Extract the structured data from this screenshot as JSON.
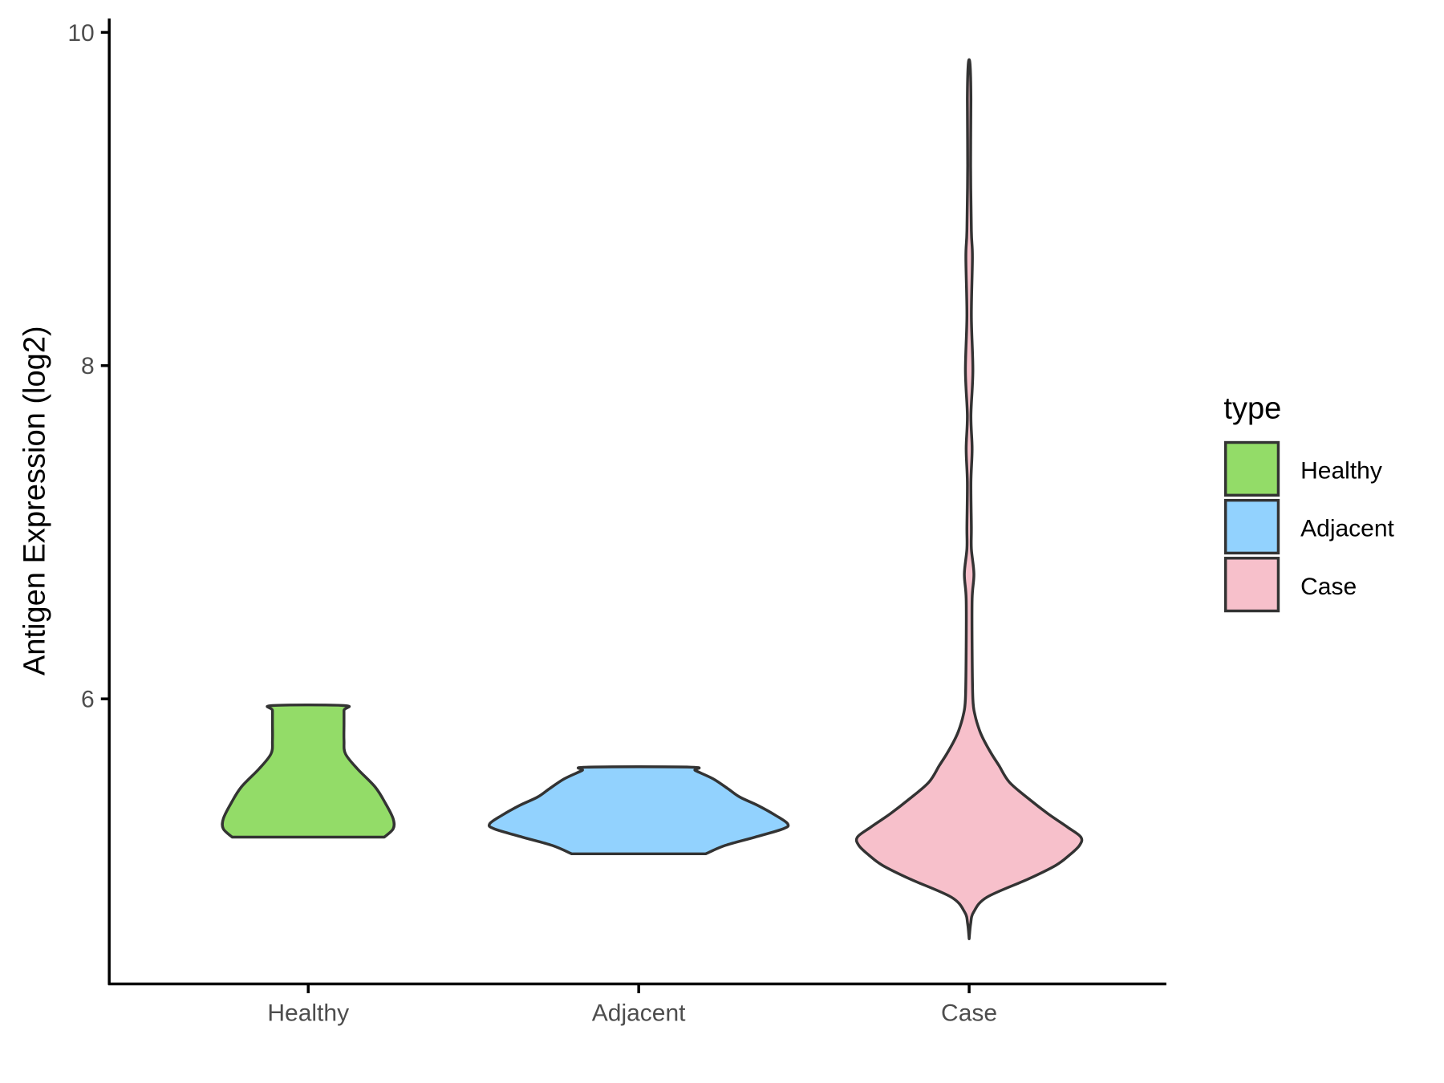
{
  "chart_data": {
    "type": "violin",
    "title": "",
    "xlabel": "",
    "ylabel": "Antigen Expression (log2)",
    "categories": [
      "Healthy",
      "Adjacent",
      "Case"
    ],
    "yticks": [
      "6",
      "8",
      "10"
    ],
    "ytick_values": [
      6,
      8,
      10
    ],
    "ylim": [
      4.4,
      10.1
    ],
    "legend": {
      "title": "type",
      "position": "right",
      "entries": [
        "Healthy",
        "Adjacent",
        "Case"
      ]
    },
    "colors": {
      "Healthy": "#93dc68",
      "Adjacent": "#92d2fe",
      "Case": "#f7c0cb",
      "outline": "#333333"
    },
    "series": [
      {
        "name": "Healthy",
        "density_profile": [
          [
            5.17,
            0.51
          ],
          [
            5.22,
            0.57
          ],
          [
            5.28,
            0.57
          ],
          [
            5.37,
            0.52
          ],
          [
            5.47,
            0.45
          ],
          [
            5.58,
            0.33
          ],
          [
            5.67,
            0.25
          ],
          [
            5.75,
            0.24
          ],
          [
            5.85,
            0.24
          ],
          [
            5.93,
            0.24
          ],
          [
            5.96,
            0.24
          ]
        ]
      },
      {
        "name": "Adjacent",
        "density_profile": [
          [
            5.07,
            0.45
          ],
          [
            5.12,
            0.58
          ],
          [
            5.17,
            0.78
          ],
          [
            5.22,
            0.97
          ],
          [
            5.25,
            1.0
          ],
          [
            5.3,
            0.92
          ],
          [
            5.36,
            0.8
          ],
          [
            5.41,
            0.68
          ],
          [
            5.46,
            0.6
          ],
          [
            5.52,
            0.5
          ],
          [
            5.57,
            0.38
          ],
          [
            5.59,
            0.35
          ]
        ]
      },
      {
        "name": "Case",
        "density_profile": [
          [
            4.56,
            0
          ],
          [
            4.65,
            0.01
          ],
          [
            4.72,
            0.03
          ],
          [
            4.81,
            0.12
          ],
          [
            4.92,
            0.4
          ],
          [
            5.0,
            0.58
          ],
          [
            5.06,
            0.67
          ],
          [
            5.12,
            0.74
          ],
          [
            5.17,
            0.75
          ],
          [
            5.23,
            0.66
          ],
          [
            5.31,
            0.53
          ],
          [
            5.4,
            0.4
          ],
          [
            5.5,
            0.27
          ],
          [
            5.6,
            0.2
          ],
          [
            5.67,
            0.15
          ],
          [
            5.75,
            0.1
          ],
          [
            5.81,
            0.07
          ],
          [
            5.9,
            0.04
          ],
          [
            6.0,
            0.025
          ],
          [
            6.3,
            0.02
          ],
          [
            6.6,
            0.02
          ],
          [
            6.75,
            0.032
          ],
          [
            6.9,
            0.015
          ],
          [
            7.03,
            0.015
          ],
          [
            7.3,
            0.012
          ],
          [
            7.5,
            0.02
          ],
          [
            7.7,
            0.012
          ],
          [
            7.97,
            0.025
          ],
          [
            8.3,
            0.015
          ],
          [
            8.65,
            0.022
          ],
          [
            8.81,
            0.015
          ],
          [
            9.2,
            0.01
          ],
          [
            9.6,
            0.012
          ],
          [
            9.81,
            0.006
          ]
        ]
      }
    ]
  }
}
